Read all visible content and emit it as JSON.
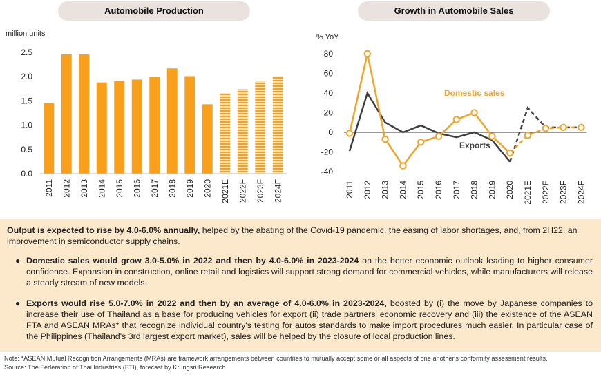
{
  "titles": {
    "left": "Automobile Production",
    "right": "Growth in Automobile Sales"
  },
  "colors": {
    "bar": "#f8a01c",
    "domestic": "#f0a429",
    "exports": "#404040",
    "panel": "#fce9cc",
    "pill": "#eae2de"
  },
  "chart_data": [
    {
      "type": "bar",
      "ylabel": "million units",
      "ylim": [
        0,
        2.5
      ],
      "yticks": [
        "0.0",
        "0.5",
        "1.0",
        "1.5",
        "2.0",
        "2.5"
      ],
      "categories": [
        "2011",
        "2012",
        "2013",
        "2014",
        "2015",
        "2016",
        "2017",
        "2018",
        "2019",
        "2020",
        "2021E",
        "2022F",
        "2023F",
        "2024F"
      ],
      "values": [
        1.46,
        2.46,
        2.46,
        1.88,
        1.91,
        1.94,
        1.99,
        2.17,
        2.01,
        1.43,
        1.66,
        1.74,
        1.91,
        2.01
      ],
      "forecast_from": "2021E",
      "forecast_style": "striped"
    },
    {
      "type": "line",
      "ylabel": "% YoY",
      "ylim": [
        -40,
        80
      ],
      "yticks": [
        "80",
        "60",
        "40",
        "20",
        "0",
        "-20",
        "-40"
      ],
      "categories": [
        "2011",
        "2012",
        "2013",
        "2014",
        "2015",
        "2016",
        "2017",
        "2018",
        "2019",
        "2020",
        "2021E",
        "2022F",
        "2023F",
        "2024F"
      ],
      "series": [
        {
          "name": "Domestic sales",
          "values": [
            -1,
            80,
            -7,
            -34,
            -10,
            -4,
            13,
            20,
            -4,
            -21,
            -3,
            4,
            5,
            5
          ]
        },
        {
          "name": "Exports",
          "values": [
            -19,
            40,
            10,
            0,
            7,
            -1,
            -5,
            0,
            -8,
            -30,
            25,
            5,
            5,
            5
          ]
        }
      ],
      "forecast_from": "2021E",
      "forecast_style": "dashed"
    }
  ],
  "summary": {
    "lead_bold": "Output is expected to rise by 4.0-6.0% annually,",
    "lead_rest": " helped by the abating of the Covid-19 pandemic, the easing of labor shortages, and, from 2H22, an improvement in semiconductor supply chains.",
    "bullet_1_bold": "Domestic sales would grow 3.0-5.0% in 2022 and then by 4.0-6.0% in 2023-2024",
    "bullet_1_rest": " on the better economic outlook leading to higher consumer confidence. Expansion in construction, online retail and logistics will support strong demand for commercial vehicles, while manufacturers will release a steady stream of new models.",
    "bullet_2_bold": "Exports would rise 5.0-7.0% in 2022 and then by an average of 4.0-6.0% in 2023-2024,",
    "bullet_2_rest": " boosted by (i) the move by Japanese companies to increase their use of Thailand as a base for producing vehicles for export (ii) trade partners' economic recovery and (iii) the existence of the ASEAN FTA and ASEAN MRAs* that recognize individual country's testing for autos standards to make import procedures much easier. In particular case of the Philippines (Thailand's 3rd largest export market), sales will be helped by the closure of local production lines.",
    "bullet_symbol": "●"
  },
  "footnotes": {
    "note": "Note: *ASEAN Mutual Recognition Arrangements (MRAs) are framework arrangements between countries to mutually accept some or all aspects of one another's conformity assessment results.",
    "source": "Source: The Federation of Thai Industries (FTI), forecast by Krungsri Research"
  }
}
